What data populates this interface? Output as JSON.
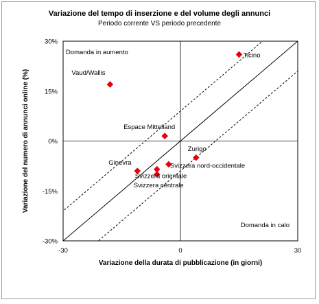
{
  "chart_data": {
    "type": "scatter",
    "title": "Variazione del tempo di inserzione e del volume degli annunci",
    "subtitle": "Periodo corrente VS periodo precedente",
    "xlabel": "Variazione della durata di pubblicazione (in giorni)",
    "ylabel": "Variazione del numero di annunci online (%)",
    "xlim": [
      -30,
      30
    ],
    "ylim": [
      -30,
      30
    ],
    "x_ticks": [
      -30,
      0,
      30
    ],
    "y_ticks": [
      30,
      15,
      0,
      -15,
      -30
    ],
    "x_tick_labels": [
      "-30",
      "0",
      "30"
    ],
    "y_tick_labels": [
      "30%",
      "15%",
      "0%",
      "-15%",
      "-30%"
    ],
    "quadrant_labels": {
      "top_left": "Domanda in aumento",
      "bottom_right": "Domanda in calo"
    },
    "reference_lines": [
      {
        "kind": "solid",
        "slope": 1,
        "intercept": 0
      },
      {
        "kind": "dashed",
        "slope": 1,
        "intercept": 9
      },
      {
        "kind": "dashed",
        "slope": 1,
        "intercept": -9
      }
    ],
    "color": "#e8000b",
    "points": [
      {
        "label": "Ticino",
        "x": 15,
        "y": 26
      },
      {
        "label": "Vaud/Wallis",
        "x": -18,
        "y": 17
      },
      {
        "label": "Espace Mittelland",
        "x": -4,
        "y": 1.5
      },
      {
        "label": "Zurigo",
        "x": 4,
        "y": -5
      },
      {
        "label": "Ginevra",
        "x": -11,
        "y": -9
      },
      {
        "label": "Svizzera nord-occidentale",
        "x": -3,
        "y": -7
      },
      {
        "label": "Svizzera orientale",
        "x": -6,
        "y": -8.5
      },
      {
        "label": "Svizzera centrale",
        "x": -6,
        "y": -10
      }
    ]
  }
}
